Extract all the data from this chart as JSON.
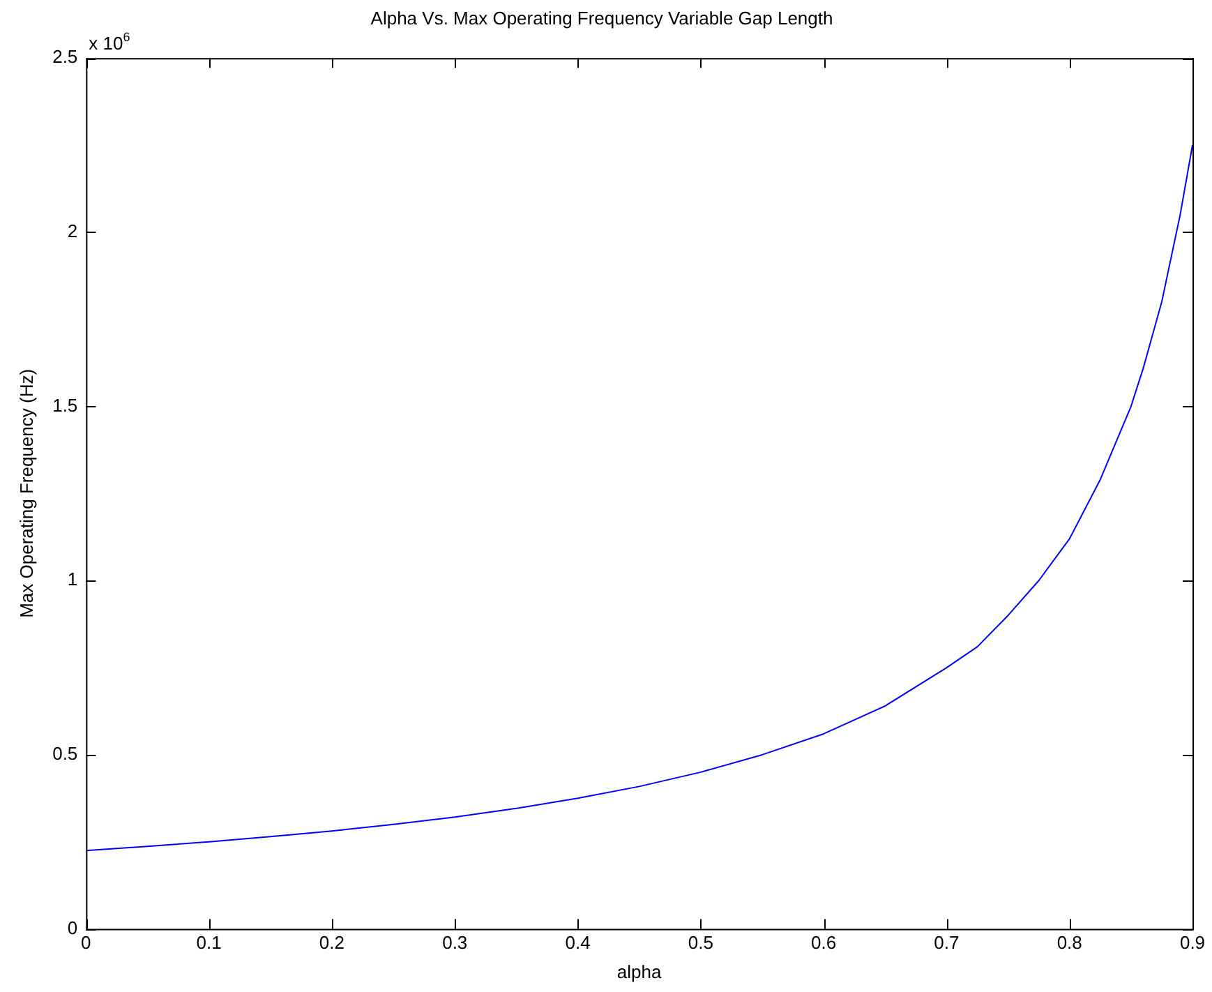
{
  "chart_data": {
    "type": "line",
    "title": "Alpha Vs. Max Operating Frequency Variable Gap Length",
    "xlabel": "alpha",
    "ylabel": "Max Operating Frequency (Hz)",
    "annotations": [
      "x 10$^{6}$"
    ],
    "x": [
      0,
      0.05,
      0.1,
      0.15,
      0.2,
      0.25,
      0.3,
      0.35,
      0.4,
      0.45,
      0.5,
      0.55,
      0.6,
      0.65,
      0.7,
      0.725,
      0.75,
      0.775,
      0.8,
      0.825,
      0.85,
      0.86,
      0.875,
      0.89,
      0.9
    ],
    "series": [
      {
        "color": "#0000ff",
        "values": [
          0.225,
          0.237,
          0.25,
          0.265,
          0.281,
          0.3,
          0.321,
          0.346,
          0.375,
          0.409,
          0.45,
          0.5,
          0.56,
          0.64,
          0.75,
          0.81,
          0.9,
          1.0,
          1.12,
          1.29,
          1.5,
          1.61,
          1.8,
          2.05,
          2.25
        ]
      }
    ],
    "xlim": [
      0,
      0.9
    ],
    "xticks": [
      0,
      0.1,
      0.2,
      0.3,
      0.4,
      0.5,
      0.6,
      0.7,
      0.8,
      0.9
    ],
    "ylim": [
      0,
      2.5
    ],
    "yticks": [
      0,
      0.5,
      1,
      1.5,
      2,
      2.5
    ],
    "grid": false,
    "legend": false,
    "marker": "none",
    "line_style": "solid"
  }
}
